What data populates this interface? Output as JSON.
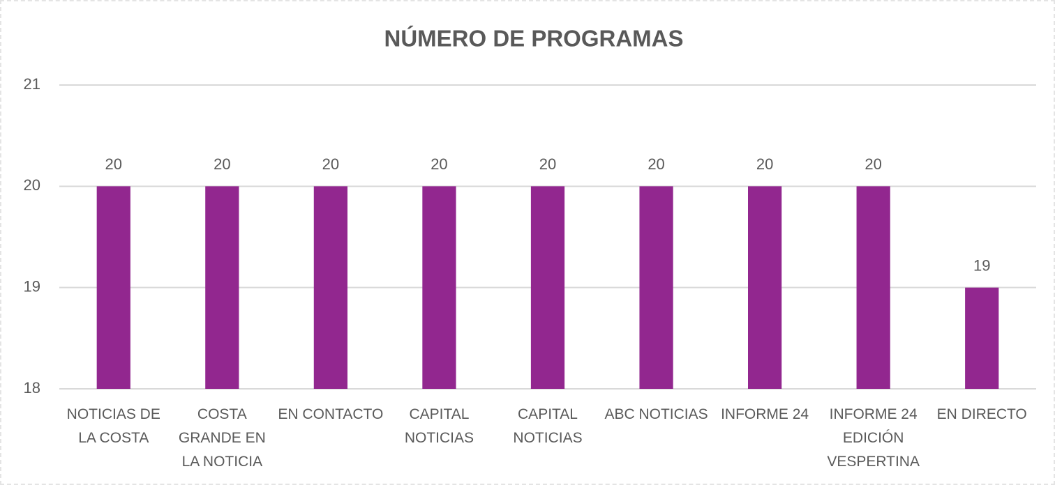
{
  "chart_data": {
    "type": "bar",
    "title": "NÚMERO DE PROGRAMAS",
    "categories": [
      "NOTICIAS DE LA COSTA",
      "COSTA GRANDE EN LA NOTICIA",
      "EN CONTACTO",
      "CAPITAL NOTICIAS",
      "CAPITAL NOTICIAS",
      "ABC NOTICIAS",
      "INFORME 24",
      "INFORME 24 EDICIÓN VESPERTINA",
      "EN DIRECTO"
    ],
    "values": [
      20,
      20,
      20,
      20,
      20,
      20,
      20,
      20,
      19
    ],
    "color": "#92278f",
    "ylim": [
      18,
      21
    ],
    "yticks": [
      18,
      19,
      20,
      21
    ],
    "grid": true,
    "data_labels": true
  }
}
